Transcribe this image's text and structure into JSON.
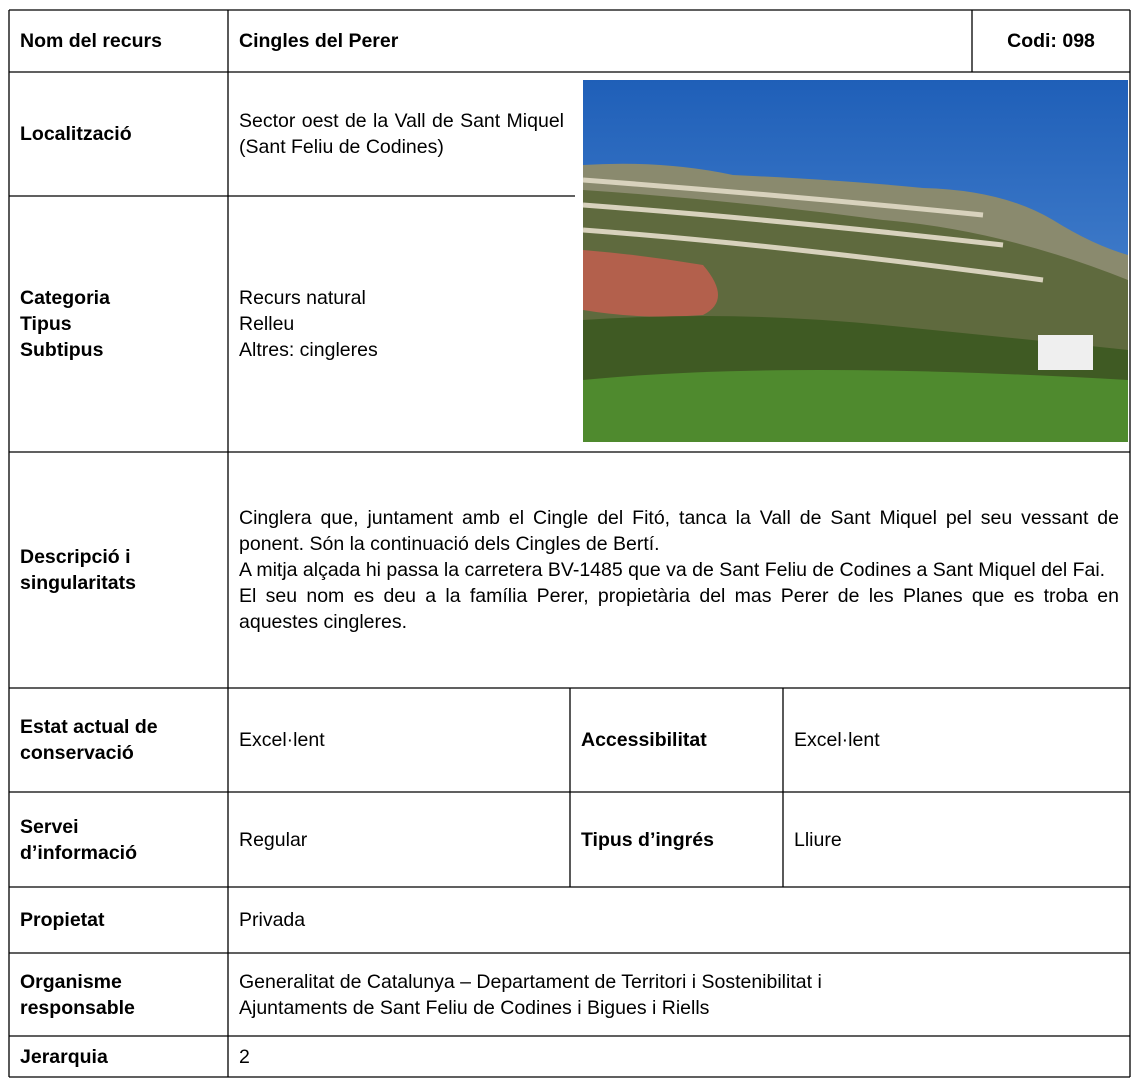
{
  "header": {
    "name_label": "Nom del recurs",
    "name": "Cingles del Perer",
    "code": "Codi: 098"
  },
  "location": {
    "label": "Localització",
    "value": "Sector oest de la Vall de Sant Miquel (Sant Feliu de Codines)"
  },
  "category": {
    "labels": [
      "Categoria",
      "Tipus",
      "Subtipus"
    ],
    "values": [
      "Recurs natural",
      "Relleu",
      "Altres: cingleres"
    ]
  },
  "description": {
    "label": "Descripció i singularitats",
    "paragraphs": [
      "Cinglera que, juntament amb el Cingle del Fitó, tanca la Vall de Sant Miquel pel seu vessant de ponent. Són la continuació dels Cingles de Bertí.",
      "A mitja alçada hi passa la carretera BV-1485 que va de Sant Feliu de Codines a Sant Miquel del Fai.",
      "El seu nom es deu a la família Perer, propietària del mas Perer de les Planes que es troba en aquestes cingleres."
    ]
  },
  "conservation": {
    "label": "Estat actual de conservació",
    "value": "Excel·lent",
    "access_label": "Accessibilitat",
    "access_value": "Excel·lent"
  },
  "information": {
    "label": "Servei d’informació",
    "value": "Regular",
    "entry_label": "Tipus d’ingrés",
    "entry_value": "Lliure"
  },
  "ownership": {
    "label": "Propietat",
    "value": "Privada"
  },
  "responsible": {
    "label": "Organisme responsable",
    "lines": [
      "Generalitat de Catalunya – Departament de Territori i Sostenibilitat i",
      "Ajuntaments de Sant Feliu de Codines i Bigues i Riells"
    ]
  },
  "hierarchy": {
    "label": "Jerarquia",
    "value": "2"
  }
}
